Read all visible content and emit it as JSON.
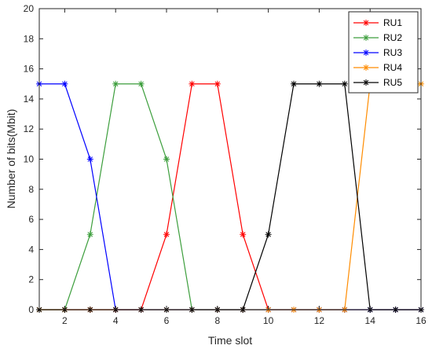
{
  "chart_data": {
    "type": "line",
    "xlabel": "Time slot",
    "ylabel": "Number of bits(Mbit)",
    "xlim": [
      1,
      16
    ],
    "ylim": [
      0,
      20
    ],
    "xticks": [
      2,
      4,
      6,
      8,
      10,
      12,
      14,
      16
    ],
    "yticks": [
      0,
      2,
      4,
      6,
      8,
      10,
      12,
      14,
      16,
      18,
      20
    ],
    "grid": false,
    "legend_position": "top-right",
    "marker": "asterisk",
    "x": [
      1,
      2,
      3,
      4,
      5,
      6,
      7,
      8,
      9,
      10,
      11,
      12,
      13,
      14,
      15,
      16
    ],
    "series": [
      {
        "name": "RU1",
        "color": "#ff0000",
        "values": [
          0,
          0,
          0,
          0,
          0,
          5,
          15,
          15,
          5,
          0,
          0,
          0,
          0,
          0,
          0,
          0
        ]
      },
      {
        "name": "RU2",
        "color": "#3c9e3c",
        "values": [
          0,
          0,
          5,
          15,
          15,
          10,
          0,
          0,
          0,
          0,
          0,
          0,
          0,
          0,
          0,
          0
        ]
      },
      {
        "name": "RU3",
        "color": "#0000ff",
        "values": [
          15,
          15,
          10,
          0,
          0,
          0,
          0,
          0,
          0,
          0,
          0,
          0,
          0,
          0,
          0,
          0
        ]
      },
      {
        "name": "RU4",
        "color": "#ff8c00",
        "values": [
          0,
          0,
          0,
          0,
          0,
          0,
          0,
          0,
          0,
          0,
          0,
          0,
          0,
          15,
          15,
          15
        ]
      },
      {
        "name": "RU5",
        "color": "#000000",
        "values": [
          0,
          0,
          0,
          0,
          0,
          0,
          0,
          0,
          0,
          5,
          15,
          15,
          15,
          0,
          0,
          0
        ]
      }
    ]
  }
}
